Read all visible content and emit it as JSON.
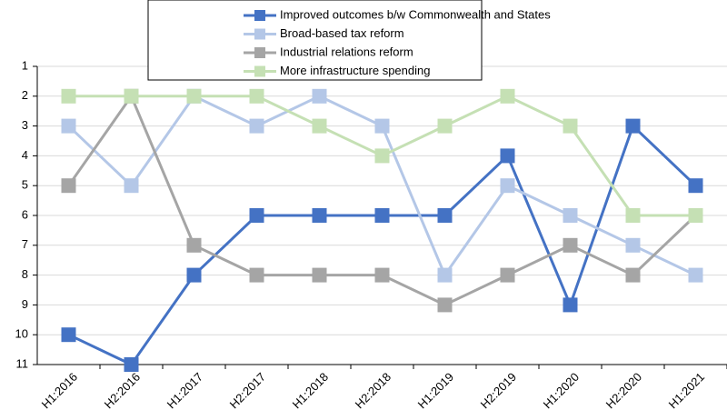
{
  "chart_data": {
    "type": "line",
    "categories": [
      "H1:2016",
      "H2:2016",
      "H1:2017",
      "H2:2017",
      "H1:2018",
      "H2:2018",
      "H1:2019",
      "H2:2019",
      "H1:2020",
      "H2:2020",
      "H1:2021"
    ],
    "series": [
      {
        "name": "Improved outcomes b/w Commonwealth and States",
        "color": "#4472c4",
        "values": [
          10,
          11,
          8,
          6,
          6,
          6,
          6,
          4,
          9,
          3,
          5
        ]
      },
      {
        "name": "Broad-based tax reform",
        "color": "#b4c7e7",
        "values": [
          3,
          5,
          2,
          3,
          2,
          3,
          8,
          5,
          6,
          7,
          8
        ]
      },
      {
        "name": "Industrial relations reform",
        "color": "#a5a5a5",
        "values": [
          5,
          2,
          7,
          8,
          8,
          8,
          9,
          8,
          7,
          8,
          6
        ]
      },
      {
        "name": "More infrastructure spending",
        "color": "#c5e0b4",
        "values": [
          2,
          2,
          2,
          2,
          3,
          4,
          3,
          2,
          3,
          6,
          6
        ]
      }
    ],
    "ylim": [
      1,
      11
    ],
    "yticks": [
      1,
      2,
      3,
      4,
      5,
      6,
      7,
      8,
      9,
      10,
      11
    ],
    "y_reversed": true,
    "grid": true,
    "legend": "top"
  }
}
